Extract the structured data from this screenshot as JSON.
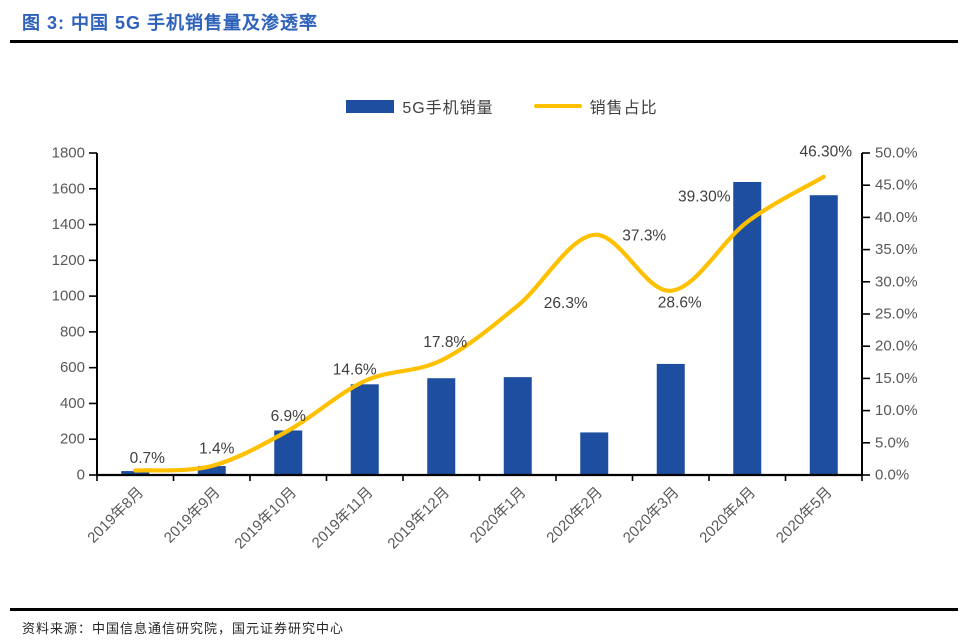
{
  "header": {
    "title": "图 3: 中国 5G 手机销售量及渗透率"
  },
  "legend": {
    "bar_label": "5G手机销量",
    "line_label": "销售占比"
  },
  "colors": {
    "bar_blue": "#1D4E9F",
    "line_gold": "#FFC000",
    "title_blue": "#2F62BA",
    "axis_text": "#595959",
    "data_label_text": "#3F3F3F",
    "axis_line": "#000000"
  },
  "chart_data": {
    "type": "bar+line",
    "title": "中国 5G 手机销售量及渗透率",
    "categories": [
      "2019年8月",
      "2019年9月",
      "2019年10月",
      "2019年11月",
      "2019年12月",
      "2020年1月",
      "2020年2月",
      "2020年3月",
      "2020年4月",
      "2020年5月"
    ],
    "series": [
      {
        "name": "5G手机销量",
        "type": "bar",
        "axis": "left",
        "color": "#1D4E9F",
        "values": [
          22,
          50,
          249,
          507,
          541,
          547,
          238,
          621,
          1638,
          1564
        ]
      },
      {
        "name": "销售占比",
        "type": "line",
        "axis": "right",
        "color": "#FFC000",
        "values": [
          0.7,
          1.4,
          6.9,
          14.6,
          17.8,
          26.3,
          37.3,
          28.6,
          39.3,
          46.3
        ],
        "point_labels": [
          "0.7%",
          "1.4%",
          "6.9%",
          "14.6%",
          "17.8%",
          "26.3%",
          "37.3%",
          "28.6%",
          "39.30%",
          "46.30%"
        ]
      }
    ],
    "left_axis": {
      "min": 0,
      "max": 1800,
      "step": 200,
      "tick_labels": [
        "0",
        "200",
        "400",
        "600",
        "800",
        "1000",
        "1200",
        "1400",
        "1600",
        "1800"
      ]
    },
    "right_axis": {
      "min": 0,
      "max": 50,
      "step": 5,
      "tick_labels": [
        "0.0%",
        "5.0%",
        "10.0%",
        "15.0%",
        "20.0%",
        "25.0%",
        "30.0%",
        "35.0%",
        "40.0%",
        "45.0%",
        "50.0%"
      ]
    },
    "grid": false,
    "legend_position": "top-center"
  },
  "footer": {
    "source": "资料来源：中国信息通信研究院，国元证券研究中心"
  }
}
